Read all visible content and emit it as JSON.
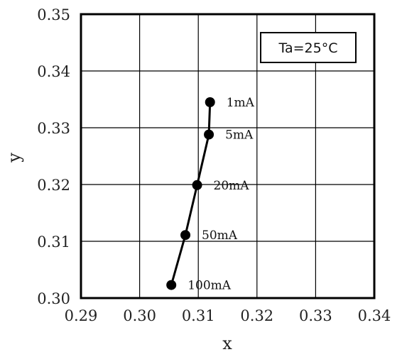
{
  "chart_data": {
    "type": "line",
    "xlabel": "x",
    "ylabel": "y",
    "xlim": [
      0.29,
      0.34
    ],
    "ylim": [
      0.3,
      0.35
    ],
    "x_ticks": [
      "0.29",
      "0.30",
      "0.31",
      "0.32",
      "0.33",
      "0.34"
    ],
    "y_ticks": [
      "0.30",
      "0.31",
      "0.32",
      "0.33",
      "0.34",
      "0.35"
    ],
    "grid": true,
    "annotation": "Ta=25°C",
    "series": [
      {
        "points": [
          {
            "label": "1mA",
            "x": 0.312,
            "y": 0.3345
          },
          {
            "label": "5mA",
            "x": 0.3118,
            "y": 0.3288
          },
          {
            "label": "20mA",
            "x": 0.3098,
            "y": 0.3199
          },
          {
            "label": "50mA",
            "x": 0.3078,
            "y": 0.3111
          },
          {
            "label": "100mA",
            "x": 0.3054,
            "y": 0.3023
          }
        ]
      }
    ],
    "colors": {
      "line": "#000000",
      "grid": "#000000"
    }
  }
}
